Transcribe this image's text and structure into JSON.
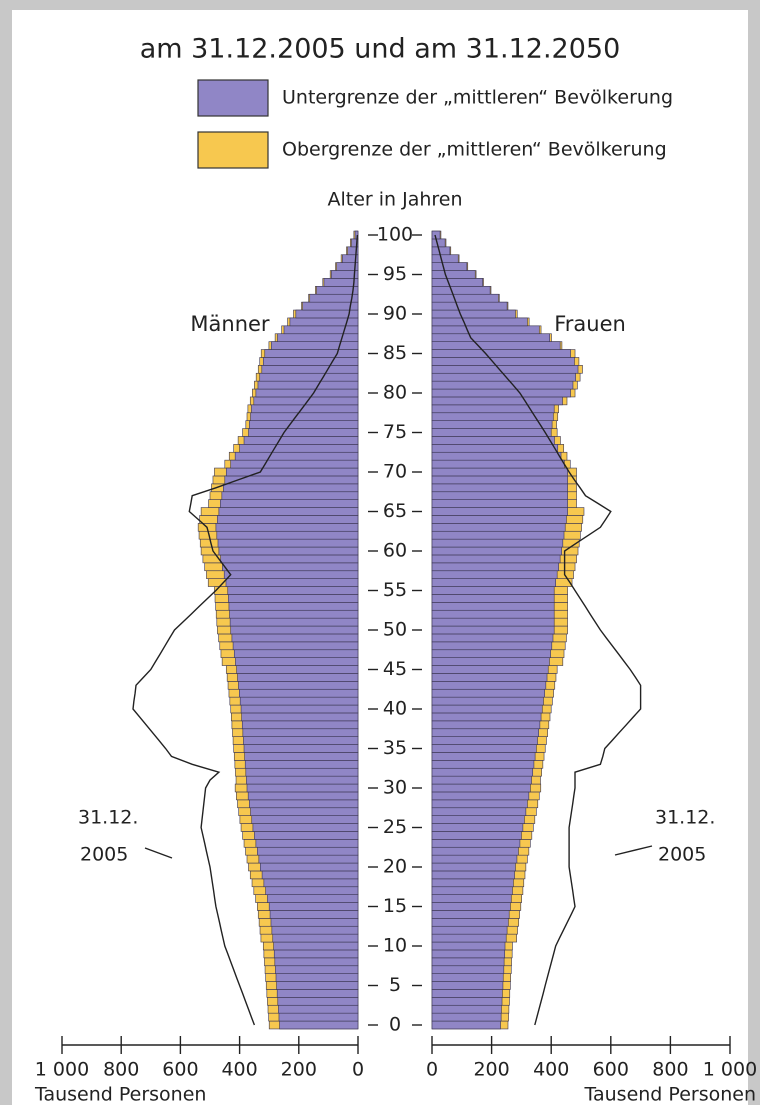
{
  "chart_data": {
    "type": "pyramid",
    "title": "am 31.12.2005 und am 31.12.2050",
    "age_label": "Alter in Jahren",
    "male_label": "Männer",
    "female_label": "Frauen",
    "xlabel": "Tausend Personen",
    "annotation": [
      "31.12.",
      "2005"
    ],
    "ylim": [
      0,
      100
    ],
    "yticks": [
      0,
      5,
      10,
      15,
      20,
      25,
      30,
      35,
      40,
      45,
      50,
      55,
      60,
      65,
      70,
      75,
      80,
      85,
      90,
      95,
      100
    ],
    "xlim": [
      0,
      1000
    ],
    "xticks": [
      0,
      200,
      400,
      600,
      800,
      {
        "value": 1000,
        "label": "1 000"
      }
    ],
    "ages": [
      0,
      1,
      2,
      3,
      4,
      5,
      6,
      7,
      8,
      9,
      10,
      11,
      12,
      13,
      14,
      15,
      16,
      17,
      18,
      19,
      20,
      21,
      22,
      23,
      24,
      25,
      26,
      27,
      28,
      29,
      30,
      31,
      32,
      33,
      34,
      35,
      36,
      37,
      38,
      39,
      40,
      41,
      42,
      43,
      44,
      45,
      46,
      47,
      48,
      49,
      50,
      51,
      52,
      53,
      54,
      55,
      56,
      57,
      58,
      59,
      60,
      61,
      62,
      63,
      64,
      65,
      66,
      67,
      68,
      69,
      70,
      71,
      72,
      73,
      74,
      75,
      76,
      77,
      78,
      79,
      80,
      81,
      82,
      83,
      84,
      85,
      86,
      87,
      88,
      89,
      90,
      91,
      92,
      93,
      94,
      95,
      96,
      97,
      98,
      99,
      100
    ],
    "series": [
      {
        "name": "Untergrenze der „mittleren“ Bevölkerung",
        "color": "#9086c6",
        "male": [
          265,
          267,
          269,
          271,
          273,
          275,
          277,
          279,
          281,
          283,
          285,
          288,
          291,
          294,
          297,
          300,
          306,
          312,
          318,
          324,
          330,
          335,
          340,
          345,
          350,
          355,
          359,
          363,
          367,
          371,
          375,
          377,
          379,
          381,
          383,
          385,
          387,
          389,
          391,
          393,
          395,
          398,
          401,
          404,
          407,
          410,
          414,
          418,
          422,
          426,
          430,
          432,
          434,
          436,
          438,
          440,
          446,
          452,
          458,
          464,
          470,
          473,
          477,
          480,
          475,
          470,
          465,
          460,
          455,
          450,
          445,
          430,
          415,
          400,
          385,
          370,
          367,
          363,
          360,
          352,
          345,
          338,
          332,
          325,
          320,
          315,
          293,
          272,
          250,
          230,
          210,
          187,
          163,
          140,
          115,
          90,
          72,
          53,
          35,
          22,
          10
        ],
        "female": [
          230,
          232,
          233,
          235,
          236,
          238,
          239,
          241,
          242,
          244,
          245,
          249,
          252,
          256,
          259,
          263,
          266,
          270,
          273,
          277,
          280,
          285,
          290,
          295,
          300,
          305,
          310,
          315,
          320,
          325,
          330,
          334,
          338,
          342,
          346,
          350,
          354,
          358,
          362,
          366,
          370,
          374,
          378,
          382,
          386,
          390,
          394,
          398,
          402,
          406,
          410,
          410,
          410,
          410,
          410,
          410,
          415,
          420,
          425,
          430,
          435,
          439,
          443,
          447,
          451,
          455,
          455,
          455,
          455,
          455,
          455,
          444,
          433,
          422,
          411,
          400,
          403,
          407,
          410,
          438,
          465,
          473,
          482,
          490,
          478,
          465,
          430,
          395,
          360,
          320,
          280,
          252,
          223,
          195,
          170,
          145,
          117,
          88,
          60,
          44,
          27
        ]
      },
      {
        "name": "Obergrenze der „mittleren“ Bevölkerung",
        "color": "#f7c84f",
        "male": [
          300,
          302,
          304,
          306,
          308,
          310,
          312,
          314,
          316,
          318,
          320,
          328,
          331,
          334,
          337,
          340,
          346,
          352,
          358,
          364,
          370,
          375,
          380,
          385,
          390,
          395,
          399,
          403,
          407,
          411,
          415,
          412,
          414,
          416,
          418,
          420,
          422,
          424,
          426,
          428,
          430,
          433,
          436,
          439,
          442,
          445,
          459,
          463,
          467,
          471,
          475,
          477,
          479,
          481,
          483,
          485,
          506,
          512,
          518,
          524,
          530,
          533,
          537,
          540,
          535,
          530,
          505,
          500,
          495,
          490,
          485,
          450,
          435,
          420,
          405,
          390,
          379,
          375,
          372,
          364,
          357,
          350,
          344,
          337,
          332,
          327,
          301,
          280,
          258,
          238,
          218,
          191,
          167,
          144,
          119,
          94,
          76,
          57,
          39,
          26,
          14
        ],
        "female": [
          255,
          257,
          258,
          260,
          261,
          263,
          264,
          266,
          267,
          269,
          270,
          284,
          287,
          291,
          294,
          298,
          301,
          305,
          308,
          312,
          315,
          320,
          325,
          330,
          335,
          340,
          345,
          350,
          355,
          360,
          365,
          364,
          368,
          372,
          376,
          380,
          384,
          388,
          392,
          396,
          400,
          404,
          408,
          412,
          416,
          420,
          439,
          443,
          447,
          451,
          455,
          455,
          455,
          455,
          455,
          455,
          470,
          475,
          480,
          485,
          490,
          494,
          498,
          502,
          506,
          510,
          485,
          485,
          485,
          485,
          485,
          464,
          453,
          442,
          431,
          420,
          418,
          422,
          425,
          453,
          480,
          488,
          497,
          505,
          493,
          480,
          436,
          401,
          366,
          326,
          286,
          255,
          226,
          198,
          173,
          148,
          120,
          91,
          63,
          47,
          30
        ]
      }
    ],
    "outline_2005": {
      "male": [
        350,
        360,
        370,
        380,
        390,
        400,
        410,
        420,
        430,
        440,
        450,
        456,
        462,
        468,
        474,
        480,
        484,
        488,
        492,
        496,
        500,
        506,
        512,
        518,
        524,
        530,
        527,
        524,
        521,
        518,
        515,
        500,
        470,
        560,
        630,
        650,
        672,
        694,
        716,
        738,
        760,
        757,
        753,
        750,
        725,
        700,
        684,
        668,
        652,
        636,
        620,
        592,
        564,
        536,
        508,
        480,
        455,
        430,
        450,
        470,
        490,
        497,
        503,
        510,
        540,
        570,
        565,
        560,
        480,
        405,
        330,
        314,
        298,
        282,
        266,
        250,
        230,
        210,
        190,
        170,
        150,
        134,
        118,
        102,
        86,
        70,
        62,
        54,
        46,
        38,
        30,
        26,
        21,
        17,
        14,
        12,
        10,
        8,
        6,
        4,
        2
      ],
      "female": [
        345,
        352,
        359,
        366,
        373,
        380,
        387,
        394,
        401,
        408,
        415,
        428,
        441,
        454,
        467,
        480,
        476,
        472,
        468,
        464,
        460,
        460,
        460,
        460,
        460,
        460,
        464,
        468,
        472,
        476,
        480,
        480,
        480,
        565,
        573,
        580,
        604,
        628,
        652,
        676,
        700,
        700,
        700,
        700,
        683,
        665,
        645,
        625,
        605,
        585,
        565,
        548,
        531,
        514,
        497,
        480,
        463,
        445,
        445,
        445,
        445,
        485,
        525,
        565,
        583,
        600,
        558,
        515,
        497,
        478,
        460,
        444,
        428,
        412,
        396,
        380,
        363,
        346,
        329,
        312,
        295,
        272,
        249,
        226,
        203,
        180,
        155,
        130,
        118,
        107,
        95,
        85,
        75,
        65,
        55,
        45,
        38,
        31,
        24,
        17,
        10
      ]
    }
  }
}
